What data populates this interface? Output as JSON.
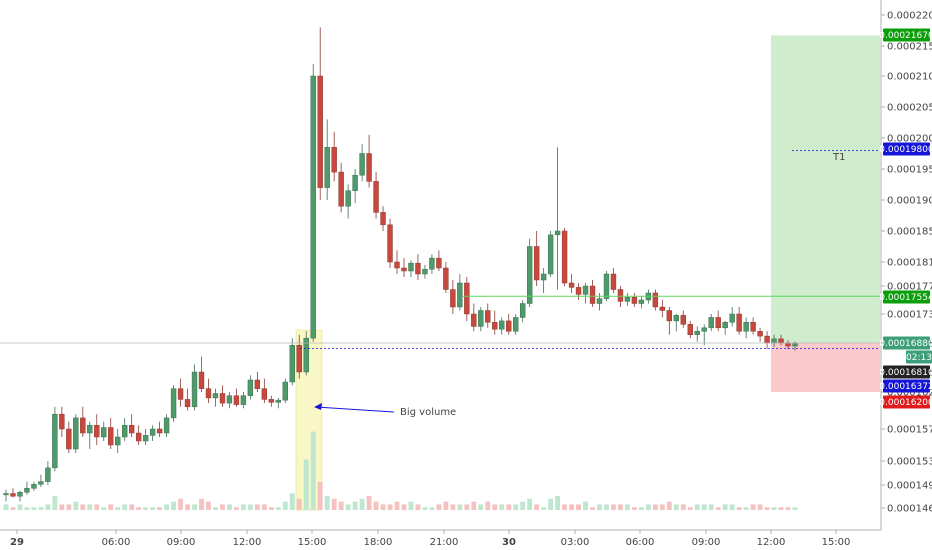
{
  "chart_data": {
    "type": "candlestick",
    "y_ticks": [
      "0.00022000",
      "0.00021500",
      "0.00021000",
      "0.00020500",
      "0.00020000",
      "0.00019500",
      "0.00019000",
      "0.00018500",
      "0.00018100",
      "0.00017700",
      "0.00017300",
      "0.00016880",
      "0.00016500",
      "0.00016200",
      "0.00015700",
      "0.00015300",
      "0.00014950",
      "0.00014600"
    ],
    "x_ticks": [
      "29",
      "06:00",
      "09:00",
      "12:00",
      "15:00",
      "18:00",
      "21:00",
      "30",
      "03:00",
      "06:00",
      "09:00",
      "12:00",
      "15:00"
    ],
    "price_tags": [
      {
        "label": "0.00021670",
        "color": "#0b9e0b",
        "value": 0.0002167
      },
      {
        "label": "0.00019800",
        "color": "#1515d8",
        "value": 0.000198
      },
      {
        "label": "0.00017554",
        "color": "#0b9e0b",
        "value": 0.00017554
      },
      {
        "label": "0.00016880",
        "color": "#3c9f79",
        "value": 0.0001688
      },
      {
        "label": "02:13",
        "color": "#3c9f79",
        "value": null
      },
      {
        "label": "0.00016810",
        "color": "#222222",
        "value": 0.0001681
      },
      {
        "label": "0.00016372",
        "color": "#1515d8",
        "value": 0.00016372
      },
      {
        "label": "0.00016200",
        "color": "#e01b1b",
        "value": 0.000162
      }
    ],
    "annotations": [
      {
        "text": "Big volume"
      },
      {
        "text": "T1"
      }
    ],
    "colors": {
      "up": "#4f9a6b",
      "down": "#c8483d",
      "up_vol": "#bfe6cf",
      "down_vol": "#f5c2c2",
      "target_zone": "#cfeccc",
      "stop_zone": "#fbc9cc",
      "highlight": "#f9f7c6"
    },
    "candles": [
      {
        "o": 0.000148,
        "h": 0.0001488,
        "l": 0.000147,
        "c": 0.0001482
      },
      {
        "o": 0.0001482,
        "h": 0.000149,
        "l": 0.0001476,
        "c": 0.0001478
      },
      {
        "o": 0.0001478,
        "h": 0.0001486,
        "l": 0.000147,
        "c": 0.0001484
      },
      {
        "o": 0.0001484,
        "h": 0.00015,
        "l": 0.000148,
        "c": 0.000149
      },
      {
        "o": 0.000149,
        "h": 0.00015,
        "l": 0.0001486,
        "c": 0.0001496
      },
      {
        "o": 0.0001496,
        "h": 0.000151,
        "l": 0.0001492,
        "c": 0.00015
      },
      {
        "o": 0.00015,
        "h": 0.000153,
        "l": 0.0001495,
        "c": 0.000152
      },
      {
        "o": 0.000152,
        "h": 0.00016,
        "l": 0.0001515,
        "c": 0.000159
      },
      {
        "o": 0.000159,
        "h": 0.00016,
        "l": 0.000156,
        "c": 0.000157
      },
      {
        "o": 0.000157,
        "h": 0.000158,
        "l": 0.000154,
        "c": 0.0001545
      },
      {
        "o": 0.0001545,
        "h": 0.000159,
        "l": 0.000154,
        "c": 0.0001585
      },
      {
        "o": 0.0001585,
        "h": 0.00016,
        "l": 0.000156,
        "c": 0.0001565
      },
      {
        "o": 0.0001565,
        "h": 0.000158,
        "l": 0.0001545,
        "c": 0.0001575
      },
      {
        "o": 0.0001575,
        "h": 0.000159,
        "l": 0.000155,
        "c": 0.000156
      },
      {
        "o": 0.000156,
        "h": 0.000158,
        "l": 0.0001555,
        "c": 0.0001572
      },
      {
        "o": 0.0001572,
        "h": 0.0001585,
        "l": 0.0001545,
        "c": 0.000155
      },
      {
        "o": 0.000155,
        "h": 0.000157,
        "l": 0.000154,
        "c": 0.000156
      },
      {
        "o": 0.000156,
        "h": 0.0001585,
        "l": 0.0001555,
        "c": 0.0001575
      },
      {
        "o": 0.0001575,
        "h": 0.000159,
        "l": 0.000156,
        "c": 0.0001565
      },
      {
        "o": 0.0001565,
        "h": 0.0001575,
        "l": 0.000155,
        "c": 0.0001555
      },
      {
        "o": 0.0001555,
        "h": 0.000157,
        "l": 0.000155,
        "c": 0.0001562
      },
      {
        "o": 0.0001562,
        "h": 0.0001575,
        "l": 0.0001555,
        "c": 0.000157
      },
      {
        "o": 0.000157,
        "h": 0.000158,
        "l": 0.000156,
        "c": 0.0001565
      },
      {
        "o": 0.0001565,
        "h": 0.000159,
        "l": 0.000156,
        "c": 0.0001585
      },
      {
        "o": 0.0001585,
        "h": 0.000163,
        "l": 0.000158,
        "c": 0.0001625
      },
      {
        "o": 0.0001625,
        "h": 0.000164,
        "l": 0.00016,
        "c": 0.000161
      },
      {
        "o": 0.000161,
        "h": 0.0001625,
        "l": 0.0001595,
        "c": 0.00016
      },
      {
        "o": 0.00016,
        "h": 0.000166,
        "l": 0.0001595,
        "c": 0.000165
      },
      {
        "o": 0.000165,
        "h": 0.000167,
        "l": 0.000162,
        "c": 0.0001625
      },
      {
        "o": 0.0001625,
        "h": 0.000164,
        "l": 0.0001605,
        "c": 0.0001612
      },
      {
        "o": 0.0001612,
        "h": 0.0001625,
        "l": 0.00016,
        "c": 0.0001618
      },
      {
        "o": 0.0001618,
        "h": 0.000163,
        "l": 0.00016,
        "c": 0.0001605
      },
      {
        "o": 0.0001605,
        "h": 0.000162,
        "l": 0.0001598,
        "c": 0.0001615
      },
      {
        "o": 0.0001615,
        "h": 0.0001625,
        "l": 0.00016,
        "c": 0.0001603
      },
      {
        "o": 0.0001603,
        "h": 0.000162,
        "l": 0.0001598,
        "c": 0.0001615
      },
      {
        "o": 0.0001615,
        "h": 0.0001645,
        "l": 0.000161,
        "c": 0.0001638
      },
      {
        "o": 0.0001638,
        "h": 0.000165,
        "l": 0.000162,
        "c": 0.0001625
      },
      {
        "o": 0.0001625,
        "h": 0.000164,
        "l": 0.0001605,
        "c": 0.000161
      },
      {
        "o": 0.000161,
        "h": 0.0001615,
        "l": 0.00016,
        "c": 0.0001606
      },
      {
        "o": 0.0001606,
        "h": 0.0001612,
        "l": 0.0001598,
        "c": 0.0001609
      },
      {
        "o": 0.0001609,
        "h": 0.000164,
        "l": 0.0001605,
        "c": 0.0001635
      },
      {
        "o": 0.0001635,
        "h": 0.0001695,
        "l": 0.000163,
        "c": 0.0001685
      },
      {
        "o": 0.0001685,
        "h": 0.00017,
        "l": 0.000164,
        "c": 0.000165
      },
      {
        "o": 0.000165,
        "h": 0.0001705,
        "l": 0.0001645,
        "c": 0.0001695
      },
      {
        "o": 0.0001695,
        "h": 0.000212,
        "l": 0.000169,
        "c": 0.00021
      },
      {
        "o": 0.00021,
        "h": 0.000218,
        "l": 0.00019,
        "c": 0.000192
      },
      {
        "o": 0.000192,
        "h": 0.000203,
        "l": 0.00019,
        "c": 0.0001985
      },
      {
        "o": 0.0001985,
        "h": 0.000201,
        "l": 0.000193,
        "c": 0.0001945
      },
      {
        "o": 0.0001945,
        "h": 0.000196,
        "l": 0.000188,
        "c": 0.000189
      },
      {
        "o": 0.000189,
        "h": 0.0001925,
        "l": 0.000187,
        "c": 0.0001915
      },
      {
        "o": 0.0001915,
        "h": 0.000195,
        "l": 0.0001895,
        "c": 0.000194
      },
      {
        "o": 0.000194,
        "h": 0.000199,
        "l": 0.000193,
        "c": 0.0001975
      },
      {
        "o": 0.0001975,
        "h": 0.0002005,
        "l": 0.000192,
        "c": 0.000193
      },
      {
        "o": 0.000193,
        "h": 0.0001945,
        "l": 0.000187,
        "c": 0.000188
      },
      {
        "o": 0.000188,
        "h": 0.000189,
        "l": 0.000185,
        "c": 0.000186
      },
      {
        "o": 0.000186,
        "h": 0.000187,
        "l": 0.00018,
        "c": 0.000181
      },
      {
        "o": 0.000181,
        "h": 0.0001825,
        "l": 0.000179,
        "c": 0.00018
      },
      {
        "o": 0.00018,
        "h": 0.0001815,
        "l": 0.0001785,
        "c": 0.0001795
      },
      {
        "o": 0.0001795,
        "h": 0.0001812,
        "l": 0.0001785,
        "c": 0.0001808
      },
      {
        "o": 0.0001808,
        "h": 0.000182,
        "l": 0.000178,
        "c": 0.000179
      },
      {
        "o": 0.000179,
        "h": 0.0001805,
        "l": 0.0001782,
        "c": 0.0001798
      },
      {
        "o": 0.0001798,
        "h": 0.000182,
        "l": 0.000179,
        "c": 0.0001815
      },
      {
        "o": 0.0001815,
        "h": 0.0001825,
        "l": 0.0001795,
        "c": 0.00018
      },
      {
        "o": 0.00018,
        "h": 0.000181,
        "l": 0.000176,
        "c": 0.0001765
      },
      {
        "o": 0.0001765,
        "h": 0.000178,
        "l": 0.000173,
        "c": 0.000174
      },
      {
        "o": 0.000174,
        "h": 0.000179,
        "l": 0.0001735,
        "c": 0.0001775
      },
      {
        "o": 0.0001775,
        "h": 0.0001785,
        "l": 0.000172,
        "c": 0.000173
      },
      {
        "o": 0.000173,
        "h": 0.0001745,
        "l": 0.0001705,
        "c": 0.0001712
      },
      {
        "o": 0.0001712,
        "h": 0.000174,
        "l": 0.0001705,
        "c": 0.0001735
      },
      {
        "o": 0.0001735,
        "h": 0.0001745,
        "l": 0.000171,
        "c": 0.0001718
      },
      {
        "o": 0.0001718,
        "h": 0.0001735,
        "l": 0.00017,
        "c": 0.0001708
      },
      {
        "o": 0.0001708,
        "h": 0.0001725,
        "l": 0.00017,
        "c": 0.000172
      },
      {
        "o": 0.000172,
        "h": 0.000173,
        "l": 0.00017,
        "c": 0.0001705
      },
      {
        "o": 0.0001705,
        "h": 0.000173,
        "l": 0.00017,
        "c": 0.0001725
      },
      {
        "o": 0.0001725,
        "h": 0.000175,
        "l": 0.0001718,
        "c": 0.0001745
      },
      {
        "o": 0.0001745,
        "h": 0.000184,
        "l": 0.000174,
        "c": 0.000183
      },
      {
        "o": 0.000183,
        "h": 0.000185,
        "l": 0.000177,
        "c": 0.000178
      },
      {
        "o": 0.000178,
        "h": 0.00018,
        "l": 0.000176,
        "c": 0.000179
      },
      {
        "o": 0.000179,
        "h": 0.000185,
        "l": 0.0001785,
        "c": 0.0001845
      },
      {
        "o": 0.0001845,
        "h": 0.0001985,
        "l": 0.0001765,
        "c": 0.000185
      },
      {
        "o": 0.000185,
        "h": 0.0001855,
        "l": 0.000177,
        "c": 0.0001775
      },
      {
        "o": 0.0001775,
        "h": 0.000179,
        "l": 0.000176,
        "c": 0.0001768
      },
      {
        "o": 0.0001768,
        "h": 0.0001775,
        "l": 0.000175,
        "c": 0.0001758
      },
      {
        "o": 0.0001758,
        "h": 0.0001775,
        "l": 0.0001745,
        "c": 0.000177
      },
      {
        "o": 0.000177,
        "h": 0.000178,
        "l": 0.000174,
        "c": 0.0001745
      },
      {
        "o": 0.0001745,
        "h": 0.000176,
        "l": 0.0001735,
        "c": 0.0001752
      },
      {
        "o": 0.0001752,
        "h": 0.0001795,
        "l": 0.0001748,
        "c": 0.000179
      },
      {
        "o": 0.000179,
        "h": 0.00018,
        "l": 0.000176,
        "c": 0.0001765
      },
      {
        "o": 0.0001765,
        "h": 0.000177,
        "l": 0.000174,
        "c": 0.0001748
      },
      {
        "o": 0.0001748,
        "h": 0.000176,
        "l": 0.0001742,
        "c": 0.0001754
      },
      {
        "o": 0.0001754,
        "h": 0.000176,
        "l": 0.000174,
        "c": 0.0001745
      },
      {
        "o": 0.0001745,
        "h": 0.0001755,
        "l": 0.0001738,
        "c": 0.000175
      },
      {
        "o": 0.000175,
        "h": 0.0001765,
        "l": 0.0001745,
        "c": 0.000176
      },
      {
        "o": 0.000176,
        "h": 0.0001765,
        "l": 0.0001735,
        "c": 0.000174
      },
      {
        "o": 0.000174,
        "h": 0.000175,
        "l": 0.0001725,
        "c": 0.0001735
      },
      {
        "o": 0.0001735,
        "h": 0.000174,
        "l": 0.00017,
        "c": 0.000172
      },
      {
        "o": 0.000172,
        "h": 0.000173,
        "l": 0.0001705,
        "c": 0.0001728
      },
      {
        "o": 0.0001728,
        "h": 0.0001735,
        "l": 0.000171,
        "c": 0.0001715
      },
      {
        "o": 0.0001715,
        "h": 0.000172,
        "l": 0.0001695,
        "c": 0.00017
      },
      {
        "o": 0.00017,
        "h": 0.0001712,
        "l": 0.000169,
        "c": 0.0001705
      },
      {
        "o": 0.0001705,
        "h": 0.0001715,
        "l": 0.0001685,
        "c": 0.000171
      },
      {
        "o": 0.000171,
        "h": 0.000173,
        "l": 0.0001705,
        "c": 0.0001725
      },
      {
        "o": 0.0001725,
        "h": 0.0001735,
        "l": 0.0001705,
        "c": 0.000171
      },
      {
        "o": 0.000171,
        "h": 0.000172,
        "l": 0.00017,
        "c": 0.0001718
      },
      {
        "o": 0.0001718,
        "h": 0.000174,
        "l": 0.0001712,
        "c": 0.000173
      },
      {
        "o": 0.000173,
        "h": 0.000174,
        "l": 0.00017,
        "c": 0.0001705
      },
      {
        "o": 0.0001705,
        "h": 0.0001725,
        "l": 0.0001695,
        "c": 0.0001718
      },
      {
        "o": 0.0001718,
        "h": 0.0001725,
        "l": 0.00017,
        "c": 0.0001705
      },
      {
        "o": 0.0001705,
        "h": 0.000171,
        "l": 0.000169,
        "c": 0.0001698
      },
      {
        "o": 0.0001698,
        "h": 0.0001705,
        "l": 0.000168,
        "c": 0.0001688
      },
      {
        "o": 0.0001688,
        "h": 0.00017,
        "l": 0.0001683,
        "c": 0.0001694
      },
      {
        "o": 0.0001694,
        "h": 0.00017,
        "l": 0.0001685,
        "c": 0.0001688
      },
      {
        "o": 0.0001688,
        "h": 0.0001692,
        "l": 0.000168,
        "c": 0.0001684
      },
      {
        "o": 0.0001684,
        "h": 0.000169,
        "l": 0.0001678,
        "c": 0.0001688
      }
    ],
    "volumes": [
      2,
      1,
      2,
      1,
      1,
      1,
      2,
      5,
      2,
      2,
      3,
      2,
      2,
      2,
      1,
      2,
      1,
      2,
      2,
      1,
      1,
      1,
      1,
      2,
      3,
      4,
      2,
      2,
      4,
      3,
      1,
      2,
      2,
      1,
      2,
      2,
      2,
      2,
      1,
      1,
      3,
      6,
      4,
      18,
      28,
      10,
      5,
      4,
      3,
      2,
      3,
      4,
      5,
      3,
      2,
      2,
      3,
      2,
      3,
      2,
      1,
      1,
      2,
      3,
      2,
      2,
      2,
      3,
      2,
      3,
      2,
      2,
      2,
      2,
      3,
      4,
      2,
      1,
      4,
      5,
      2,
      2,
      2,
      3,
      1,
      2,
      2,
      2,
      2,
      2,
      1,
      1,
      2,
      2,
      2,
      3,
      2,
      2,
      1,
      2,
      2,
      2,
      1,
      2,
      2,
      1,
      1,
      2,
      2,
      1,
      1,
      1,
      1,
      1,
      1,
      1
    ]
  }
}
